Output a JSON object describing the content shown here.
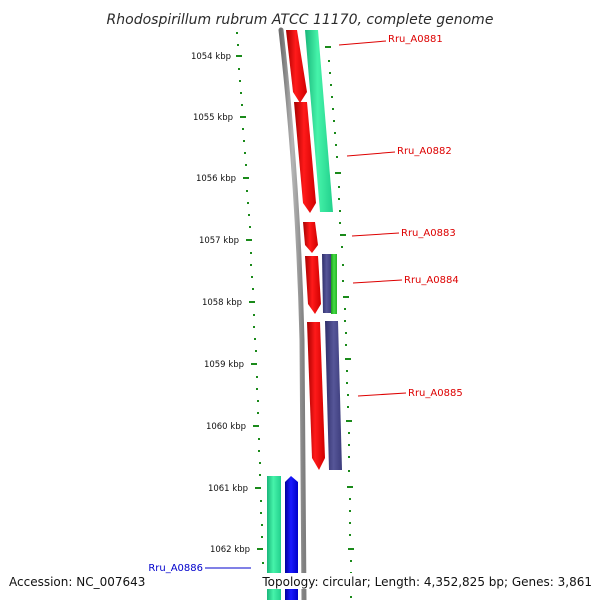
{
  "title": "Rhodospirillum rubrum ATCC 11170, complete genome",
  "kbp_ticks": [
    "1054 kbp",
    "1055 kbp",
    "1056 kbp",
    "1057 kbp",
    "1058 kbp",
    "1059 kbp",
    "1060 kbp",
    "1061 kbp",
    "1062 kbp"
  ],
  "genes": [
    {
      "id": "Rru_A0881",
      "label": "Rru_A0881",
      "color": "#dd0000"
    },
    {
      "id": "Rru_A0882",
      "label": "Rru_A0882",
      "color": "#dd0000"
    },
    {
      "id": "Rru_A0883",
      "label": "Rru_A0883",
      "color": "#dd0000"
    },
    {
      "id": "Rru_A0884",
      "label": "Rru_A0884",
      "color": "#dd0000"
    },
    {
      "id": "Rru_A0885",
      "label": "Rru_A0885",
      "color": "#dd0000"
    },
    {
      "id": "Rru_A0886",
      "label": "Rru_A0886",
      "color": "#0000cc"
    }
  ],
  "footer": {
    "accession": "Accession: NC_007643",
    "summary": "Topology: circular; Length: 4,352,825 bp; Genes: 3,861"
  },
  "colors": {
    "backbone": "#8c8c8c",
    "cds_forward": "#ff0000",
    "cds_reverse": "#0000ff",
    "orf_teal": "#2be89a",
    "orf_purple": "#4b4b8f",
    "orf_green": "#33cc33",
    "tick_green": "#1a8a1a"
  }
}
